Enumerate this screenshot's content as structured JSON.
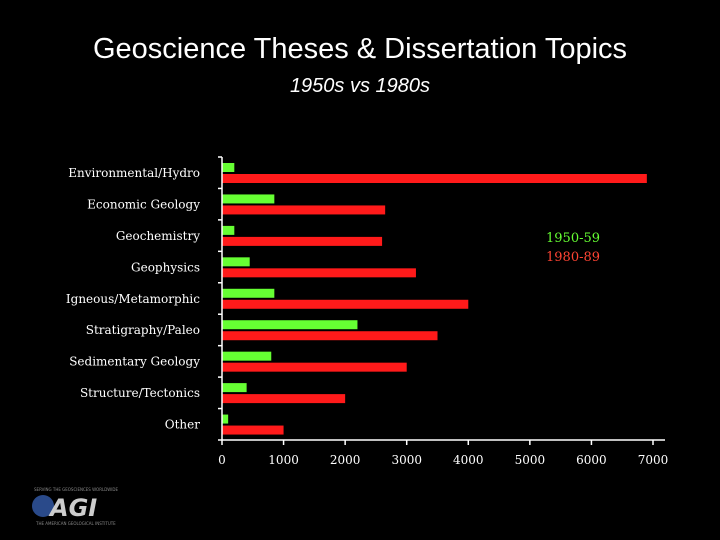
{
  "colors": {
    "background": "#000000",
    "series1": "#66ff33",
    "series2": "#ff1a1a",
    "axis": "#ffffff",
    "legend1": "#66ff33",
    "legend2": "#ff4433"
  },
  "chart_data": {
    "type": "bar",
    "orientation": "horizontal",
    "title": "Geoscience Theses & Dissertation Topics",
    "subtitle": "1950s vs 1980s",
    "categories": [
      "Environmental/Hydro",
      "Economic Geology",
      "Geochemistry",
      "Geophysics",
      "Igneous/Metamorphic",
      "Stratigraphy/Paleo",
      "Sedimentary Geology",
      "Structure/Tectonics",
      "Other"
    ],
    "series": [
      {
        "name": "1950-59",
        "values": [
          200,
          850,
          200,
          450,
          850,
          2200,
          800,
          400,
          100
        ]
      },
      {
        "name": "1980-89",
        "values": [
          6900,
          2650,
          2600,
          3150,
          4000,
          3500,
          3000,
          2000,
          1000
        ]
      }
    ],
    "xlim": [
      0,
      7000
    ],
    "xticks": [
      0,
      1000,
      2000,
      3000,
      4000,
      5000,
      6000,
      7000
    ],
    "xtick_labels": [
      "0",
      "1000",
      "2000",
      "3000",
      "4000",
      "5000",
      "6000",
      "7000"
    ],
    "legend_position": "right"
  },
  "logo": {
    "text": "AGI",
    "tagline_top": "SERVING THE GEOSCIENCES WORLDWIDE",
    "tagline_bottom": "THE AMERICAN GEOLOGICAL INSTITUTE"
  }
}
